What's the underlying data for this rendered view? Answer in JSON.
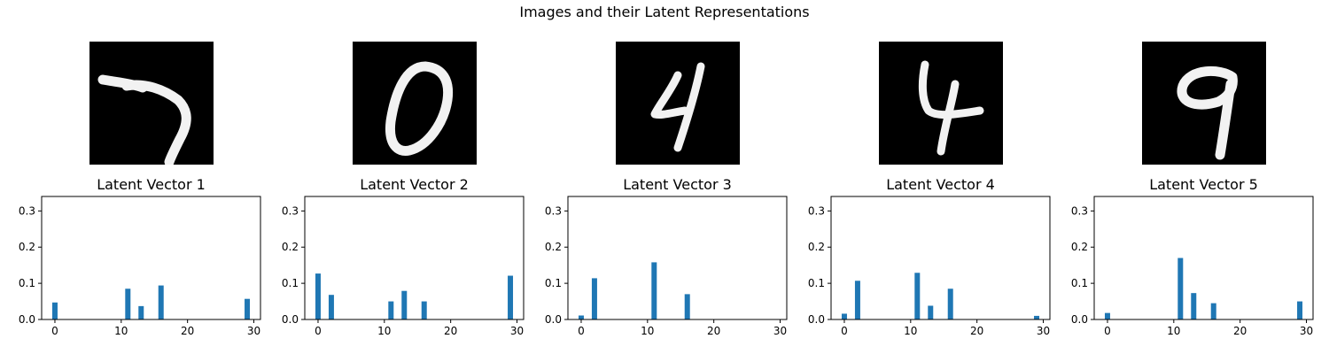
{
  "suptitle": "Images and their Latent Representations",
  "digits": [
    {
      "label": "7"
    },
    {
      "label": "0"
    },
    {
      "label": "4"
    },
    {
      "label": "4"
    },
    {
      "label": "9"
    }
  ],
  "chart_data": [
    {
      "type": "bar",
      "title": "Latent Vector 1",
      "xlim": [
        -2,
        31
      ],
      "ylim": [
        0,
        0.34
      ],
      "xticks": [
        0,
        10,
        20,
        30
      ],
      "yticks": [
        0.0,
        0.1,
        0.2,
        0.3
      ],
      "x": [
        0,
        11,
        13,
        16,
        29
      ],
      "values": [
        0.047,
        0.085,
        0.037,
        0.094,
        0.057
      ]
    },
    {
      "type": "bar",
      "title": "Latent Vector 2",
      "xlim": [
        -2,
        31
      ],
      "ylim": [
        0,
        0.34
      ],
      "xticks": [
        0,
        10,
        20,
        30
      ],
      "yticks": [
        0.0,
        0.1,
        0.2,
        0.3
      ],
      "x": [
        0,
        2,
        11,
        13,
        16,
        29
      ],
      "values": [
        0.127,
        0.068,
        0.05,
        0.079,
        0.05,
        0.121
      ]
    },
    {
      "type": "bar",
      "title": "Latent Vector 3",
      "xlim": [
        -2,
        31
      ],
      "ylim": [
        0,
        0.34
      ],
      "xticks": [
        0,
        10,
        20,
        30
      ],
      "yticks": [
        0.0,
        0.1,
        0.2,
        0.3
      ],
      "x": [
        0,
        2,
        11,
        16
      ],
      "values": [
        0.011,
        0.114,
        0.158,
        0.07
      ]
    },
    {
      "type": "bar",
      "title": "Latent Vector 4",
      "xlim": [
        -2,
        31
      ],
      "ylim": [
        0,
        0.34
      ],
      "xticks": [
        0,
        10,
        20,
        30
      ],
      "yticks": [
        0.0,
        0.1,
        0.2,
        0.3
      ],
      "x": [
        0,
        2,
        11,
        13,
        16,
        29
      ],
      "values": [
        0.016,
        0.107,
        0.129,
        0.038,
        0.085,
        0.01
      ]
    },
    {
      "type": "bar",
      "title": "Latent Vector 5",
      "xlim": [
        -2,
        31
      ],
      "ylim": [
        0,
        0.34
      ],
      "xticks": [
        0,
        10,
        20,
        30
      ],
      "yticks": [
        0.0,
        0.1,
        0.2,
        0.3
      ],
      "x": [
        0,
        11,
        13,
        16,
        29
      ],
      "values": [
        0.018,
        0.17,
        0.073,
        0.045,
        0.05
      ]
    }
  ],
  "bar_color": "#1f77b4"
}
